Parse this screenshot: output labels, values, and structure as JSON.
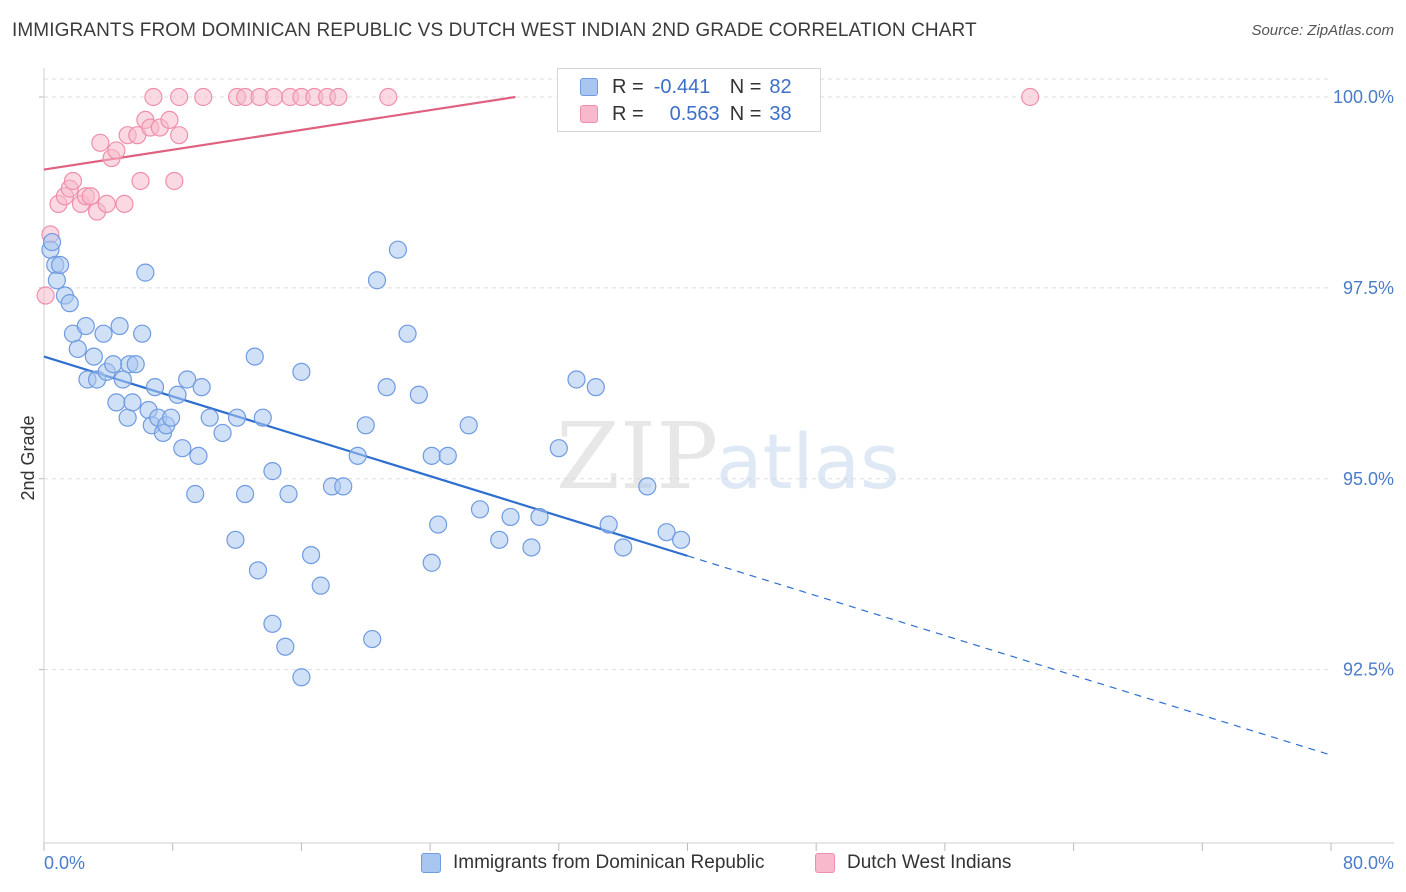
{
  "title": "IMMIGRANTS FROM DOMINICAN REPUBLIC VS DUTCH WEST INDIAN 2ND GRADE CORRELATION CHART",
  "source": "Source: ZipAtlas.com",
  "watermark": {
    "zip": "ZIP",
    "atlas": "atlas"
  },
  "legend_top": {
    "rows": [
      {
        "r_label": "R =",
        "r_value": "-0.441",
        "n_label": "N =",
        "n_value": "82"
      },
      {
        "r_label": "R =",
        "r_value": "0.563",
        "n_label": "N =",
        "n_value": "38"
      }
    ]
  },
  "legend_bottom": {
    "items": [
      {
        "label": "Immigrants from Dominican Republic"
      },
      {
        "label": "Dutch West Indians"
      }
    ]
  },
  "colors": {
    "blue_fill": "#a9c6f0",
    "blue_stroke": "#6f9be0",
    "blue_line": "#2f6fd0",
    "pink_fill": "#f7b9cb",
    "pink_stroke": "#ee8fab",
    "pink_line": "#e0607f",
    "tick_text": "#4a7cc9",
    "grid": "#dedede"
  },
  "chart_data": {
    "type": "scatter",
    "title": "IMMIGRANTS FROM DOMINICAN REPUBLIC VS DUTCH WEST INDIAN 2ND GRADE CORRELATION CHART",
    "xlabel": "",
    "ylabel": "2nd Grade",
    "xlim": [
      0,
      80
    ],
    "ylim": [
      90.2,
      100.45
    ],
    "x_tick_labels": [
      "0.0%",
      "80.0%"
    ],
    "y_ticks": [
      100.0,
      97.5,
      95.0,
      92.5
    ],
    "y_tick_labels": [
      "100.0%",
      "97.5%",
      "95.0%",
      "92.5%"
    ],
    "series": [
      {
        "name": "Immigrants from Dominican Republic",
        "color": "#6f9be0",
        "trendline": {
          "x0": 0,
          "y0": 96.6,
          "x1": 40,
          "y1": 93.99,
          "dashed_to_x": 80,
          "dashed_to_y": 91.38
        },
        "points": [
          [
            0.4,
            98.0
          ],
          [
            0.5,
            98.1
          ],
          [
            0.7,
            97.8
          ],
          [
            0.8,
            97.6
          ],
          [
            1.0,
            97.8
          ],
          [
            1.3,
            97.4
          ],
          [
            1.6,
            97.3
          ],
          [
            1.8,
            96.9
          ],
          [
            2.1,
            96.7
          ],
          [
            2.6,
            97.0
          ],
          [
            3.1,
            96.6
          ],
          [
            2.7,
            96.3
          ],
          [
            3.3,
            96.3
          ],
          [
            3.7,
            96.9
          ],
          [
            3.9,
            96.4
          ],
          [
            4.3,
            96.5
          ],
          [
            4.5,
            96.0
          ],
          [
            4.7,
            97.0
          ],
          [
            4.9,
            96.3
          ],
          [
            5.2,
            95.8
          ],
          [
            5.3,
            96.5
          ],
          [
            5.5,
            96.0
          ],
          [
            5.7,
            96.5
          ],
          [
            6.1,
            96.9
          ],
          [
            6.3,
            97.7
          ],
          [
            6.5,
            95.9
          ],
          [
            6.7,
            95.7
          ],
          [
            6.9,
            96.2
          ],
          [
            7.1,
            95.8
          ],
          [
            7.4,
            95.6
          ],
          [
            7.6,
            95.7
          ],
          [
            7.9,
            95.8
          ],
          [
            8.3,
            96.1
          ],
          [
            8.6,
            95.4
          ],
          [
            8.9,
            96.3
          ],
          [
            9.6,
            95.3
          ],
          [
            9.4,
            94.8
          ],
          [
            9.8,
            96.2
          ],
          [
            10.3,
            95.8
          ],
          [
            11.1,
            95.6
          ],
          [
            12.0,
            95.8
          ],
          [
            12.5,
            94.8
          ],
          [
            13.1,
            96.6
          ],
          [
            13.6,
            95.8
          ],
          [
            14.2,
            95.1
          ],
          [
            15.2,
            94.8
          ],
          [
            16.0,
            96.4
          ],
          [
            16.6,
            94.0
          ],
          [
            17.2,
            93.6
          ],
          [
            17.9,
            94.9
          ],
          [
            18.6,
            94.9
          ],
          [
            19.5,
            95.3
          ],
          [
            20.0,
            95.7
          ],
          [
            20.7,
            97.6
          ],
          [
            21.3,
            96.2
          ],
          [
            22.0,
            98.0
          ],
          [
            22.6,
            96.9
          ],
          [
            23.3,
            96.1
          ],
          [
            24.1,
            95.3
          ],
          [
            25.1,
            95.3
          ],
          [
            26.4,
            95.7
          ],
          [
            27.1,
            94.6
          ],
          [
            28.3,
            94.2
          ],
          [
            29.0,
            94.5
          ],
          [
            30.3,
            94.1
          ],
          [
            30.8,
            94.5
          ],
          [
            32.0,
            95.4
          ],
          [
            33.1,
            96.3
          ],
          [
            34.3,
            96.2
          ],
          [
            35.1,
            94.4
          ],
          [
            36.0,
            94.1
          ],
          [
            37.5,
            94.9
          ],
          [
            38.7,
            94.3
          ],
          [
            39.6,
            94.2
          ],
          [
            11.9,
            94.2
          ],
          [
            13.3,
            93.8
          ],
          [
            14.2,
            93.1
          ],
          [
            15.0,
            92.8
          ],
          [
            16.0,
            92.4
          ],
          [
            20.4,
            92.9
          ],
          [
            24.1,
            93.9
          ],
          [
            24.5,
            94.4
          ]
        ]
      },
      {
        "name": "Dutch West Indians",
        "color": "#ee8fab",
        "trendline": {
          "x0": 0,
          "y0": 99.05,
          "x1": 29.3,
          "y1": 100.0
        },
        "points": [
          [
            0.1,
            97.4
          ],
          [
            0.4,
            98.2
          ],
          [
            0.9,
            98.6
          ],
          [
            1.3,
            98.7
          ],
          [
            1.6,
            98.8
          ],
          [
            1.8,
            98.9
          ],
          [
            2.3,
            98.6
          ],
          [
            2.6,
            98.7
          ],
          [
            2.9,
            98.7
          ],
          [
            3.3,
            98.5
          ],
          [
            3.5,
            99.4
          ],
          [
            3.9,
            98.6
          ],
          [
            4.2,
            99.2
          ],
          [
            4.5,
            99.3
          ],
          [
            5.0,
            98.6
          ],
          [
            5.2,
            99.5
          ],
          [
            5.8,
            99.5
          ],
          [
            6.0,
            98.9
          ],
          [
            6.3,
            99.7
          ],
          [
            6.6,
            99.6
          ],
          [
            7.2,
            99.6
          ],
          [
            7.8,
            99.7
          ],
          [
            8.1,
            98.9
          ],
          [
            8.4,
            99.5
          ],
          [
            6.8,
            100.0
          ],
          [
            8.4,
            100.0
          ],
          [
            9.9,
            100.0
          ],
          [
            12.0,
            100.0
          ],
          [
            12.5,
            100.0
          ],
          [
            13.4,
            100.0
          ],
          [
            14.3,
            100.0
          ],
          [
            15.3,
            100.0
          ],
          [
            16.0,
            100.0
          ],
          [
            16.8,
            100.0
          ],
          [
            17.6,
            100.0
          ],
          [
            18.3,
            100.0
          ],
          [
            21.4,
            100.0
          ],
          [
            61.3,
            100.0
          ]
        ]
      }
    ]
  }
}
